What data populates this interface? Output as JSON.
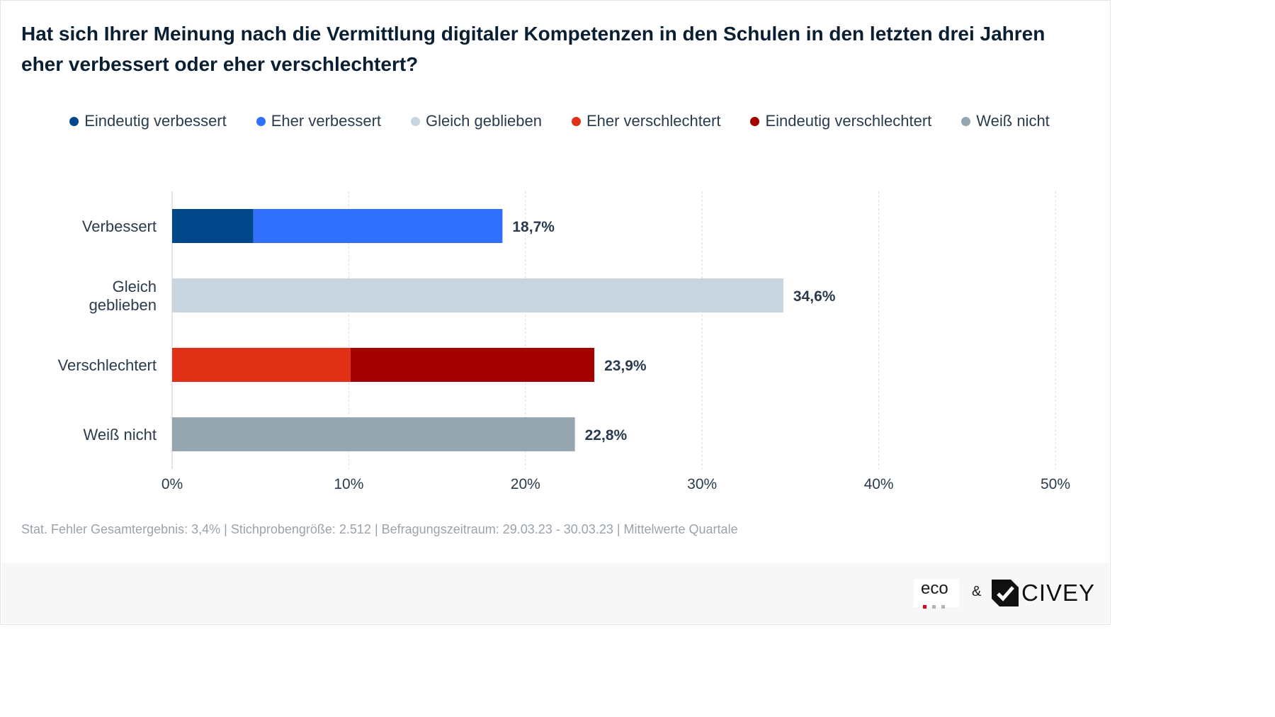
{
  "title": "Hat sich Ihrer Meinung nach die Vermittlung digitaler Kompetenzen in den Schulen in den letzten drei Jahren eher verbessert oder eher verschlechtert?",
  "legend": [
    {
      "label": "Eindeutig verbessert",
      "color": "#00478a"
    },
    {
      "label": "Eher verbessert",
      "color": "#316fff"
    },
    {
      "label": "Gleich geblieben",
      "color": "#c8d5df"
    },
    {
      "label": "Eher verschlechtert",
      "color": "#e03016"
    },
    {
      "label": "Eindeutig verschlechtert",
      "color": "#a50000"
    },
    {
      "label": "Weiß nicht",
      "color": "#96a6b1"
    }
  ],
  "chart_data": {
    "type": "bar",
    "orientation": "horizontal",
    "stacked": true,
    "categories": [
      "Verbessert",
      "Gleich geblieben",
      "Verschlechtert",
      "Weiß nicht"
    ],
    "category_lines": [
      [
        "Verbessert"
      ],
      [
        "Gleich",
        "geblieben"
      ],
      [
        "Verschlechtert"
      ],
      [
        "Weiß nicht"
      ]
    ],
    "series": [
      {
        "name": "Eindeutig verbessert",
        "color": "#00478a",
        "values": [
          4.6,
          0,
          0,
          0
        ]
      },
      {
        "name": "Eher verbessert",
        "color": "#316fff",
        "values": [
          14.1,
          0,
          0,
          0
        ]
      },
      {
        "name": "Gleich geblieben",
        "color": "#c8d5df",
        "values": [
          0,
          34.6,
          0,
          0
        ]
      },
      {
        "name": "Eher verschlechtert",
        "color": "#e03016",
        "values": [
          0,
          0,
          10.1,
          0
        ]
      },
      {
        "name": "Eindeutig verschlechtert",
        "color": "#a50000",
        "values": [
          0,
          0,
          13.8,
          0
        ]
      },
      {
        "name": "Weiß nicht",
        "color": "#96a6b1",
        "values": [
          0,
          0,
          0,
          22.8
        ]
      }
    ],
    "totals": [
      18.7,
      34.6,
      23.9,
      22.8
    ],
    "total_labels": [
      "18,7%",
      "34,6%",
      "23,9%",
      "22,8%"
    ],
    "xlim": [
      0,
      50
    ],
    "x_ticks": [
      0,
      10,
      20,
      30,
      40,
      50
    ],
    "x_tick_labels": [
      "0%",
      "10%",
      "20%",
      "30%",
      "40%",
      "50%"
    ],
    "grid": true,
    "legend_position": "top"
  },
  "footnote": "Stat. Fehler Gesamtergebnis: 3,4% | Stichprobengröße: 2.512 | Befragungszeitraum: 29.03.23 - 30.03.23 | Mittelwerte Quartale",
  "footer": {
    "eco_logo_text": "eco",
    "eco_dot_colors": [
      "#e2001a",
      "#b5b5b5",
      "#b5b5b5"
    ],
    "separator": "&",
    "civey_logo_text": "CIVEY"
  }
}
